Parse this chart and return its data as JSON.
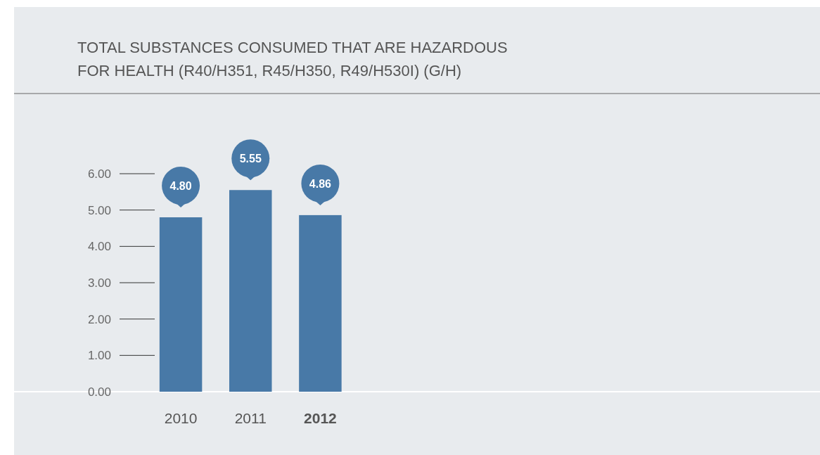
{
  "chart_data": {
    "type": "bar",
    "title": "TOTAL SUBSTANCES CONSUMED THAT ARE HAZARDOUS\nFOR HEALTH (R40/H351, R45/H350, R49/H530I) (G/H)",
    "categories": [
      "2010",
      "2011",
      "2012"
    ],
    "values": [
      4.8,
      5.55,
      4.86
    ],
    "color": "#4879a7",
    "ylim": [
      0,
      6
    ],
    "yticks": [
      {
        "value": 0,
        "label": "0.00"
      },
      {
        "value": 1,
        "label": "1.00"
      },
      {
        "value": 2,
        "label": "2.00"
      },
      {
        "value": 3,
        "label": "3.00"
      },
      {
        "value": 4,
        "label": "4.00"
      },
      {
        "value": 5,
        "label": "5.00"
      },
      {
        "value": 6,
        "label": "6.00"
      }
    ],
    "value_labels": [
      "4.80",
      "5.55",
      "4.86"
    ]
  }
}
